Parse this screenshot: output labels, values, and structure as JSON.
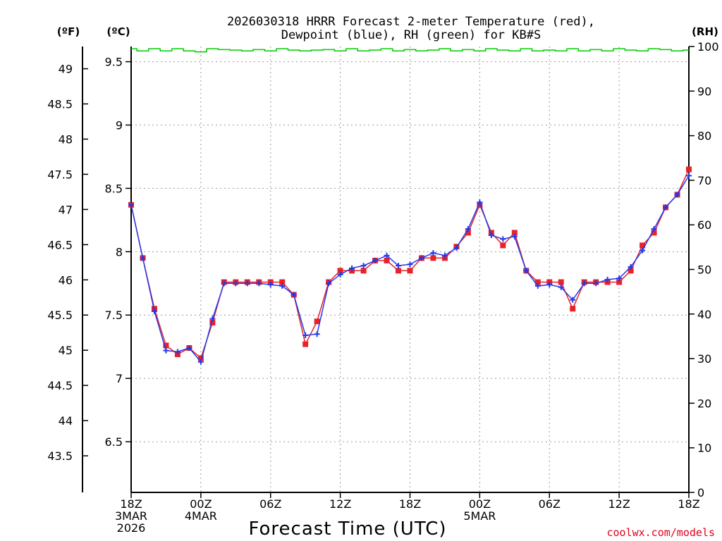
{
  "chart_data": {
    "type": "line",
    "title_lines": [
      "2026030318 HRRR Forecast 2-meter Temperature (red),",
      "Dewpoint (blue), RH (green) for KB#S"
    ],
    "xlabel": "Forecast Time (UTC)",
    "credit": "coolwx.com/models",
    "units": {
      "fahrenheit": "(ºF)",
      "celsius": "(ºC)",
      "rh": "(RH)"
    },
    "celsius_axis": {
      "ylim": [
        6.1,
        9.62
      ],
      "ticks": [
        6.5,
        7,
        7.5,
        8,
        8.5,
        9,
        9.5
      ],
      "tick_labels": [
        "6.5",
        "7",
        "7.5",
        "8",
        "8.5",
        "9",
        "9.5"
      ]
    },
    "fahrenheit_axis": {
      "ticks": [
        43.5,
        44,
        44.5,
        45,
        45.5,
        46,
        46.5,
        47,
        47.5,
        48,
        48.5,
        49
      ],
      "tick_labels": [
        "43.5",
        "44",
        "44.5",
        "45",
        "45.5",
        "46",
        "46.5",
        "47",
        "47.5",
        "48",
        "48.5",
        "49"
      ]
    },
    "rh_axis": {
      "ylim": [
        0,
        100
      ],
      "ticks": [
        0,
        10,
        20,
        30,
        40,
        50,
        60,
        70,
        80,
        90,
        100
      ],
      "tick_labels": [
        "0",
        "10",
        "20",
        "30",
        "40",
        "50",
        "60",
        "70",
        "80",
        "90",
        "100"
      ]
    },
    "x_axis": {
      "hours_range": [
        0,
        48
      ],
      "ticks": [
        {
          "hour": 0,
          "lines": [
            "18Z",
            "3MAR",
            "2026"
          ]
        },
        {
          "hour": 6,
          "lines": [
            "00Z",
            "4MAR"
          ]
        },
        {
          "hour": 12,
          "lines": [
            "06Z"
          ]
        },
        {
          "hour": 18,
          "lines": [
            "12Z"
          ]
        },
        {
          "hour": 24,
          "lines": [
            "18Z"
          ]
        },
        {
          "hour": 30,
          "lines": [
            "00Z",
            "5MAR"
          ]
        },
        {
          "hour": 36,
          "lines": [
            "06Z"
          ]
        },
        {
          "hour": 42,
          "lines": [
            "12Z"
          ]
        },
        {
          "hour": 48,
          "lines": [
            "18Z"
          ]
        }
      ]
    },
    "hours": [
      0,
      1,
      2,
      3,
      4,
      5,
      6,
      7,
      8,
      9,
      10,
      11,
      12,
      13,
      14,
      15,
      16,
      17,
      18,
      19,
      20,
      21,
      22,
      23,
      24,
      25,
      26,
      27,
      28,
      29,
      30,
      31,
      32,
      33,
      34,
      35,
      36,
      37,
      38,
      39,
      40,
      41,
      42,
      43,
      44,
      45,
      46,
      47,
      48
    ],
    "series": [
      {
        "name": "Temperature",
        "color": "#e8222a",
        "marker": "square",
        "values": [
          8.37,
          7.95,
          7.55,
          7.26,
          7.19,
          7.24,
          7.16,
          7.44,
          7.76,
          7.76,
          7.76,
          7.76,
          7.76,
          7.76,
          7.66,
          7.27,
          7.45,
          7.76,
          7.85,
          7.85,
          7.85,
          7.93,
          7.93,
          7.85,
          7.85,
          7.95,
          7.95,
          7.95,
          8.04,
          8.15,
          8.37,
          8.15,
          8.05,
          8.15,
          7.85,
          7.76,
          7.76,
          7.76,
          7.55,
          7.76,
          7.76,
          7.76,
          7.76,
          7.85,
          8.05,
          8.15,
          8.35,
          8.45,
          8.65
        ]
      },
      {
        "name": "Dewpoint",
        "color": "#2438e8",
        "marker": "plus",
        "values": [
          8.37,
          7.95,
          7.53,
          7.22,
          7.21,
          7.24,
          7.13,
          7.47,
          7.75,
          7.75,
          7.75,
          7.75,
          7.74,
          7.73,
          7.66,
          7.34,
          7.35,
          7.75,
          7.82,
          7.87,
          7.89,
          7.93,
          7.97,
          7.89,
          7.9,
          7.95,
          7.99,
          7.97,
          8.03,
          8.18,
          8.39,
          8.13,
          8.1,
          8.12,
          7.85,
          7.73,
          7.74,
          7.72,
          7.62,
          7.75,
          7.75,
          7.78,
          7.79,
          7.88,
          8.01,
          8.18,
          8.35,
          8.45,
          8.6
        ]
      },
      {
        "name": "RH",
        "color": "#00cc00",
        "marker": "step",
        "values": [
          99.5,
          99.0,
          99.5,
          99.0,
          99.5,
          99.0,
          98.8,
          99.5,
          99.3,
          99.2,
          99.0,
          99.3,
          99.0,
          99.5,
          99.2,
          99.0,
          99.2,
          99.3,
          99.0,
          99.5,
          99.0,
          99.2,
          99.5,
          99.0,
          99.3,
          99.0,
          99.2,
          99.5,
          99.0,
          99.3,
          99.0,
          99.5,
          99.2,
          99.0,
          99.5,
          99.0,
          99.2,
          99.0,
          99.5,
          99.0,
          99.3,
          99.0,
          99.5,
          99.2,
          99.0,
          99.5,
          99.3,
          99.0,
          99.2
        ]
      }
    ]
  }
}
